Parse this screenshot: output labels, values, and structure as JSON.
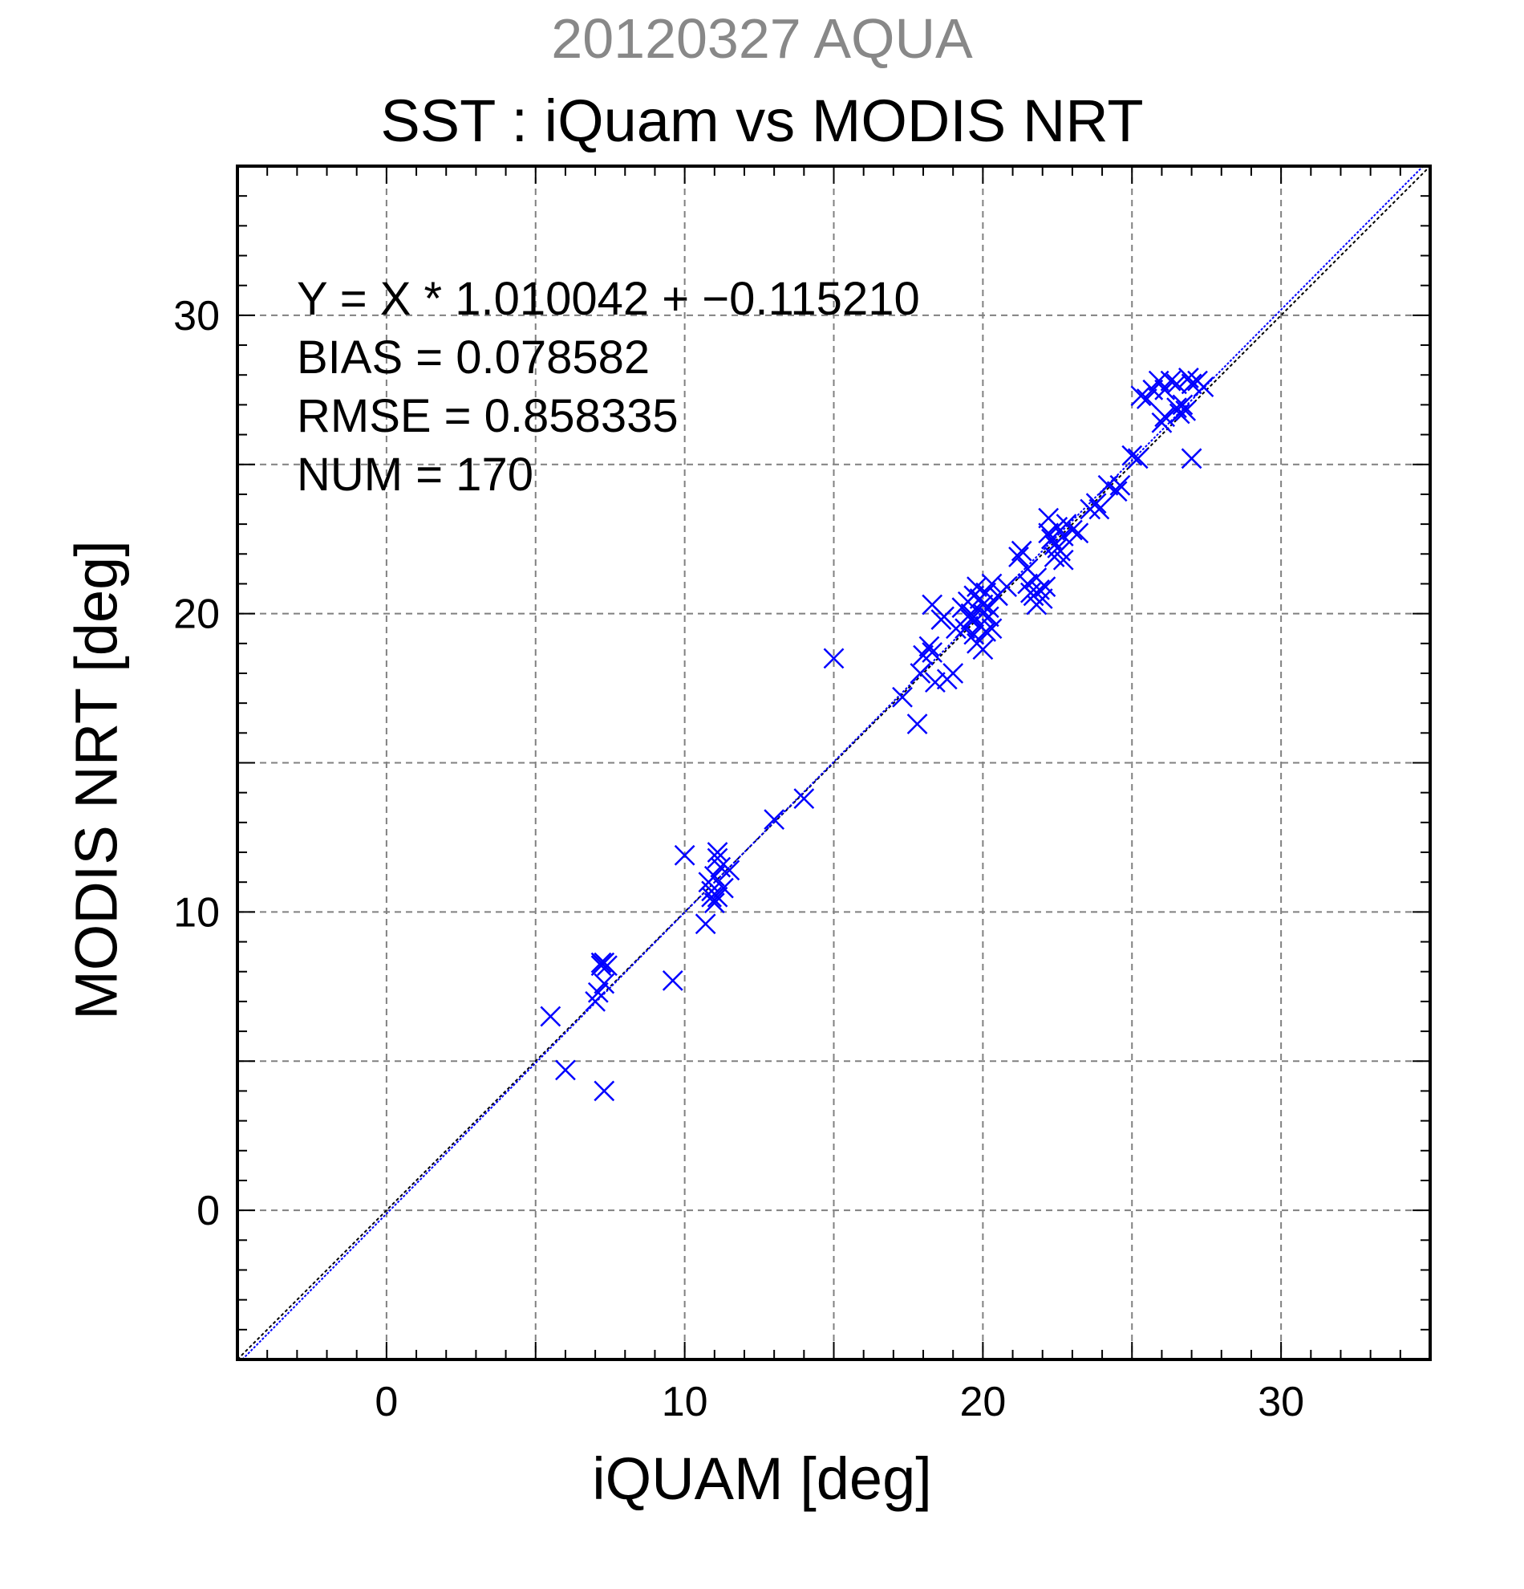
{
  "chart_data": {
    "type": "scatter",
    "title_top": "20120327 AQUA",
    "title": "SST : iQuam vs MODIS NRT",
    "xlabel": "iQUAM [deg]",
    "ylabel": "MODIS NRT [deg]",
    "xlim": [
      -5,
      35
    ],
    "ylim": [
      -5,
      35
    ],
    "xticks": [
      0,
      10,
      20,
      30
    ],
    "yticks": [
      0,
      10,
      20,
      30
    ],
    "grid": true,
    "colors": {
      "points": "#0000ff",
      "fit_line": "#0000ff",
      "identity_line": "#000000",
      "grid": "#808080",
      "title_top": "#888888"
    },
    "fit": {
      "slope": 1.010042,
      "intercept": -0.11521
    },
    "stats": [
      "Y = X * 1.010042 + −0.115210",
      "BIAS = 0.078582",
      "RMSE = 0.858335",
      "NUM = 170"
    ],
    "points": [
      [
        5.5,
        6.5
      ],
      [
        6.0,
        4.7
      ],
      [
        7.0,
        7.0
      ],
      [
        7.1,
        7.3
      ],
      [
        7.2,
        8.3
      ],
      [
        7.3,
        8.3
      ],
      [
        7.4,
        8.2
      ],
      [
        7.2,
        8.2
      ],
      [
        7.3,
        4.0
      ],
      [
        7.3,
        7.6
      ],
      [
        9.6,
        7.7
      ],
      [
        10.0,
        11.9
      ],
      [
        10.7,
        9.6
      ],
      [
        10.8,
        11.0
      ],
      [
        10.9,
        10.7
      ],
      [
        11.0,
        10.3
      ],
      [
        11.1,
        10.5
      ],
      [
        11.0,
        11.2
      ],
      [
        11.1,
        12.0
      ],
      [
        11.2,
        11.5
      ],
      [
        11.3,
        10.8
      ],
      [
        11.5,
        11.4
      ],
      [
        10.9,
        10.5
      ],
      [
        11.1,
        11.8
      ],
      [
        13.0,
        13.1
      ],
      [
        14.0,
        13.8
      ],
      [
        15.0,
        18.5
      ],
      [
        17.3,
        17.2
      ],
      [
        17.8,
        16.3
      ],
      [
        17.9,
        18.0
      ],
      [
        18.0,
        18.6
      ],
      [
        18.2,
        18.9
      ],
      [
        18.3,
        18.7
      ],
      [
        18.3,
        20.3
      ],
      [
        18.4,
        17.7
      ],
      [
        18.6,
        19.8
      ],
      [
        18.7,
        19.9
      ],
      [
        18.8,
        17.8
      ],
      [
        19.0,
        18.0
      ],
      [
        19.1,
        19.5
      ],
      [
        19.3,
        20.2
      ],
      [
        19.4,
        19.5
      ],
      [
        19.5,
        20.4
      ],
      [
        19.6,
        19.8
      ],
      [
        19.6,
        20.0
      ],
      [
        19.7,
        20.6
      ],
      [
        19.7,
        19.3
      ],
      [
        19.8,
        20.9
      ],
      [
        19.8,
        19.0
      ],
      [
        19.9,
        20.5
      ],
      [
        19.9,
        19.6
      ],
      [
        20.0,
        20.0
      ],
      [
        20.0,
        20.3
      ],
      [
        20.0,
        18.8
      ],
      [
        20.1,
        19.4
      ],
      [
        20.1,
        20.7
      ],
      [
        20.2,
        19.9
      ],
      [
        20.2,
        20.2
      ],
      [
        20.3,
        21.0
      ],
      [
        20.3,
        19.5
      ],
      [
        20.5,
        20.6
      ],
      [
        20.8,
        20.9
      ],
      [
        21.2,
        21.9
      ],
      [
        21.3,
        22.1
      ],
      [
        21.5,
        21.5
      ],
      [
        21.5,
        21.0
      ],
      [
        21.6,
        20.7
      ],
      [
        21.7,
        20.6
      ],
      [
        21.8,
        21.2
      ],
      [
        21.8,
        20.3
      ],
      [
        21.9,
        20.8
      ],
      [
        22.0,
        20.5
      ],
      [
        22.1,
        20.9
      ],
      [
        22.2,
        23.2
      ],
      [
        22.2,
        22.7
      ],
      [
        22.3,
        22.5
      ],
      [
        22.4,
        21.9
      ],
      [
        22.4,
        22.3
      ],
      [
        22.5,
        22.9
      ],
      [
        22.5,
        22.2
      ],
      [
        22.6,
        22.1
      ],
      [
        22.7,
        21.8
      ],
      [
        22.7,
        22.6
      ],
      [
        22.8,
        23.0
      ],
      [
        23.0,
        22.8
      ],
      [
        23.2,
        22.7
      ],
      [
        23.6,
        23.5
      ],
      [
        23.8,
        23.7
      ],
      [
        23.9,
        23.5
      ],
      [
        24.2,
        24.3
      ],
      [
        24.5,
        24.1
      ],
      [
        24.6,
        24.3
      ],
      [
        25.0,
        25.3
      ],
      [
        25.2,
        25.2
      ],
      [
        25.3,
        27.3
      ],
      [
        25.5,
        27.2
      ],
      [
        25.7,
        27.5
      ],
      [
        25.9,
        27.8
      ],
      [
        26.0,
        26.4
      ],
      [
        26.1,
        26.6
      ],
      [
        26.1,
        27.5
      ],
      [
        26.3,
        27.8
      ],
      [
        26.5,
        27.7
      ],
      [
        26.5,
        26.9
      ],
      [
        26.6,
        26.7
      ],
      [
        26.7,
        27.0
      ],
      [
        26.8,
        26.8
      ],
      [
        26.9,
        27.9
      ],
      [
        27.0,
        25.2
      ],
      [
        27.0,
        27.7
      ],
      [
        27.2,
        27.8
      ],
      [
        27.4,
        27.6
      ]
    ]
  }
}
